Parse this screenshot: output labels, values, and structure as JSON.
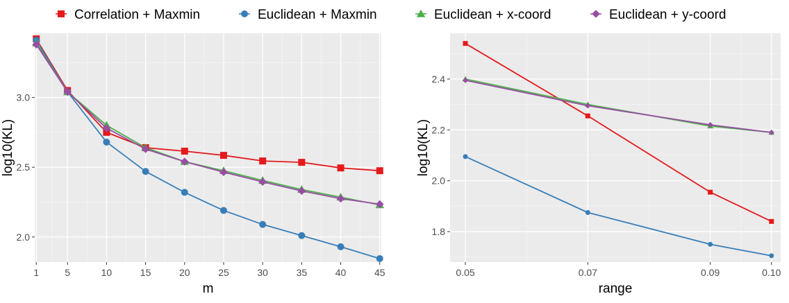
{
  "legend": [
    {
      "label": "Correlation + Maxmin",
      "color": "#E41A1C",
      "shape": "square"
    },
    {
      "label": "Euclidean + Maxmin",
      "color": "#377EB8",
      "shape": "circle"
    },
    {
      "label": "Euclidean + x-coord",
      "color": "#4DAF4A",
      "shape": "triangle"
    },
    {
      "label": "Euclidean + y-coord",
      "color": "#984EA3",
      "shape": "diamond"
    }
  ],
  "chart_data": [
    {
      "type": "line",
      "xlabel": "m",
      "ylabel": "log10(KL)",
      "x": [
        1,
        5,
        10,
        15,
        20,
        25,
        30,
        35,
        40,
        45
      ],
      "xticks": [
        "1",
        "5",
        "10",
        "15",
        "20",
        "25",
        "30",
        "35",
        "40",
        "45"
      ],
      "xlim": [
        0.8,
        45.2
      ],
      "ylim": [
        1.82,
        3.46
      ],
      "yticks": [
        "2.0",
        "2.5",
        "3.0"
      ],
      "yticks_values": [
        2.0,
        2.5,
        3.0
      ],
      "grid": true,
      "series": [
        {
          "name": "Correlation + Maxmin",
          "values": [
            3.42,
            3.05,
            2.75,
            2.64,
            2.615,
            2.585,
            2.545,
            2.535,
            2.495,
            2.475
          ]
        },
        {
          "name": "Euclidean + Maxmin",
          "values": [
            3.41,
            3.04,
            2.68,
            2.47,
            2.32,
            2.19,
            2.09,
            2.01,
            1.93,
            1.845
          ]
        },
        {
          "name": "Euclidean + x-coord",
          "values": [
            3.39,
            3.04,
            2.8,
            2.64,
            2.54,
            2.475,
            2.405,
            2.34,
            2.285,
            2.23
          ]
        },
        {
          "name": "Euclidean + y-coord",
          "values": [
            3.38,
            3.04,
            2.78,
            2.63,
            2.54,
            2.465,
            2.395,
            2.33,
            2.275,
            2.235
          ]
        }
      ]
    },
    {
      "type": "line",
      "xlabel": "range",
      "ylabel": "log10(KL)",
      "x": [
        0.05,
        0.07,
        0.09,
        0.1
      ],
      "xticks": [
        "0.05",
        "0.07",
        "0.09",
        "0.10"
      ],
      "xlim": [
        0.0475,
        0.1015
      ],
      "ylim": [
        1.68,
        2.58
      ],
      "yticks": [
        "1.8",
        "2.0",
        "2.2",
        "2.4"
      ],
      "yticks_values": [
        1.8,
        2.0,
        2.2,
        2.4
      ],
      "grid": true,
      "series": [
        {
          "name": "Correlation + Maxmin",
          "values": [
            2.54,
            2.255,
            1.955,
            1.84
          ]
        },
        {
          "name": "Euclidean + Maxmin",
          "values": [
            2.095,
            1.875,
            1.75,
            1.705
          ]
        },
        {
          "name": "Euclidean + x-coord",
          "values": [
            2.4,
            2.3,
            2.215,
            2.19
          ]
        },
        {
          "name": "Euclidean + y-coord",
          "values": [
            2.395,
            2.295,
            2.22,
            2.19
          ]
        }
      ]
    }
  ]
}
